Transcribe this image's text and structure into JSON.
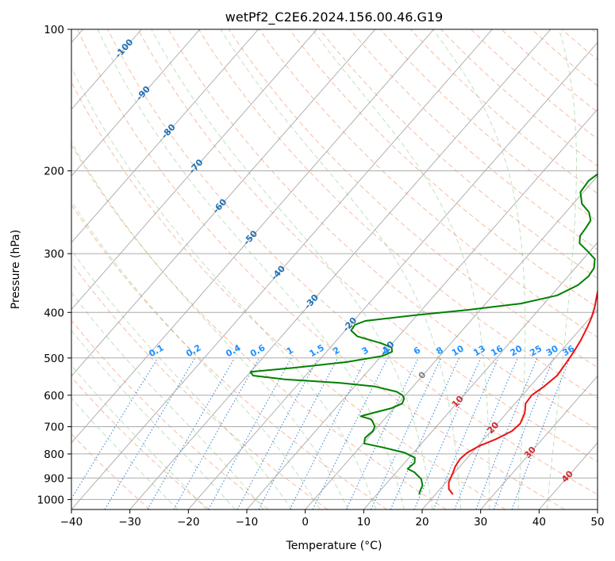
{
  "chart_data": {
    "type": "line",
    "title": "wetPf2_C2E6.2024.156.00.46.G19",
    "xlabel": "Temperature (°C)",
    "ylabel": "Pressure (hPa)",
    "xlim": [
      -40,
      50
    ],
    "ylim": [
      1050,
      100
    ],
    "y_scale": "log",
    "grid": true,
    "x_ticks": [
      -40,
      -30,
      -20,
      -10,
      0,
      10,
      20,
      30,
      40,
      50
    ],
    "y_ticks": [
      100,
      200,
      300,
      400,
      500,
      600,
      700,
      800,
      900,
      1000
    ],
    "isotherm_labels": [
      {
        "value": "-100",
        "temp": -100,
        "p": 110
      },
      {
        "value": "-90",
        "temp": -90,
        "p": 137
      },
      {
        "value": "-80",
        "temp": -80,
        "p": 165
      },
      {
        "value": "-70",
        "temp": -70,
        "p": 196
      },
      {
        "value": "-60",
        "temp": -60,
        "p": 238
      },
      {
        "value": "-50",
        "temp": -50,
        "p": 278
      },
      {
        "value": "-40",
        "temp": -40,
        "p": 330
      },
      {
        "value": "-30",
        "temp": -30,
        "p": 380
      },
      {
        "value": "-20",
        "temp": -20,
        "p": 425
      },
      {
        "value": "-10",
        "temp": -10,
        "p": 478
      },
      {
        "value": "0",
        "temp": 0,
        "p": 545
      },
      {
        "value": "10",
        "temp": 10,
        "p": 620
      },
      {
        "value": "20",
        "temp": 20,
        "p": 705
      },
      {
        "value": "30",
        "temp": 30,
        "p": 795
      },
      {
        "value": "40",
        "temp": 40,
        "p": 895
      }
    ],
    "mixing_ratio_labels": [
      "0.1",
      "0.2",
      "0.4",
      "0.6",
      "1",
      "1.5",
      "2",
      "3",
      "4",
      "6",
      "8",
      "10",
      "13",
      "16",
      "20",
      "25",
      "30",
      "36"
    ],
    "series": [
      {
        "label": "temperature",
        "color": "#ee1111",
        "points": [
          [
            23.0,
            975
          ],
          [
            21.5,
            950
          ],
          [
            20.5,
            920
          ],
          [
            19.8,
            880
          ],
          [
            19.2,
            850
          ],
          [
            18.9,
            820
          ],
          [
            19.2,
            795
          ],
          [
            20.2,
            770
          ],
          [
            22.0,
            745
          ],
          [
            23.6,
            715
          ],
          [
            23.9,
            690
          ],
          [
            23.1,
            655
          ],
          [
            21.8,
            625
          ],
          [
            21.6,
            600
          ],
          [
            22.4,
            575
          ],
          [
            23.0,
            545
          ],
          [
            22.7,
            515
          ],
          [
            22.3,
            485
          ],
          [
            21.8,
            460
          ],
          [
            21.0,
            432
          ],
          [
            20.2,
            410
          ],
          [
            19.2,
            390
          ],
          [
            17.8,
            368
          ],
          [
            16.3,
            345
          ],
          [
            15.0,
            322
          ],
          [
            13.8,
            300
          ],
          [
            12.4,
            282
          ],
          [
            11.0,
            266
          ],
          [
            10.2,
            250
          ],
          [
            10.1,
            235
          ],
          [
            10.4,
            220
          ],
          [
            10.0,
            208
          ],
          [
            8.9,
            195
          ],
          [
            7.6,
            183
          ],
          [
            6.4,
            172
          ],
          [
            5.6,
            160
          ],
          [
            5.1,
            148
          ],
          [
            5.6,
            138
          ],
          [
            6.8,
            128
          ],
          [
            8.6,
            119
          ],
          [
            10.2,
            111
          ],
          [
            11.4,
            104
          ],
          [
            11.8,
            100
          ]
        ]
      },
      {
        "label": "dewpoint",
        "color": "#008000",
        "points": [
          [
            17.2,
            975
          ],
          [
            16.8,
            955
          ],
          [
            16.5,
            935
          ],
          [
            15.3,
            905
          ],
          [
            13.1,
            875
          ],
          [
            11.4,
            860
          ],
          [
            11.7,
            835
          ],
          [
            11.0,
            815
          ],
          [
            8.5,
            795
          ],
          [
            4.0,
            775
          ],
          [
            0.2,
            760
          ],
          [
            -0.5,
            740
          ],
          [
            -0.2,
            715
          ],
          [
            -0.5,
            700
          ],
          [
            -1.5,
            685
          ],
          [
            -2.3,
            675
          ],
          [
            -4.5,
            665
          ],
          [
            -3.0,
            655
          ],
          [
            -0.5,
            640
          ],
          [
            0.7,
            625
          ],
          [
            0.3,
            610
          ],
          [
            -0.5,
            600
          ],
          [
            -2.0,
            590
          ],
          [
            -6.5,
            575
          ],
          [
            -13.0,
            565
          ],
          [
            -23.0,
            555
          ],
          [
            -29.0,
            545
          ],
          [
            -30.0,
            535
          ],
          [
            -23.5,
            525
          ],
          [
            -15.0,
            510
          ],
          [
            -9.8,
            495
          ],
          [
            -8.8,
            485
          ],
          [
            -9.5,
            475
          ],
          [
            -12.0,
            465
          ],
          [
            -17.0,
            450
          ],
          [
            -19.0,
            437
          ],
          [
            -19.2,
            425
          ],
          [
            -18.0,
            417
          ],
          [
            -10.0,
            405
          ],
          [
            -2.0,
            395
          ],
          [
            6.0,
            383
          ],
          [
            11.0,
            368
          ],
          [
            13.0,
            350
          ],
          [
            13.5,
            335
          ],
          [
            13.2,
            322
          ],
          [
            12.0,
            308
          ],
          [
            9.5,
            296
          ],
          [
            7.0,
            285
          ],
          [
            6.0,
            275
          ],
          [
            5.8,
            265
          ],
          [
            5.5,
            255
          ],
          [
            4.0,
            245
          ],
          [
            1.5,
            235
          ],
          [
            -0.5,
            222
          ],
          [
            -0.8,
            210
          ],
          [
            0.0,
            200
          ],
          [
            1.0,
            192
          ],
          [
            1.2,
            182
          ],
          [
            1.0,
            170
          ],
          [
            0.0,
            160
          ],
          [
            -2.5,
            150
          ],
          [
            -7.0,
            142
          ],
          [
            -12.0,
            135
          ],
          [
            -13.2,
            130
          ],
          [
            -12.5,
            125
          ],
          [
            -10.8,
            119
          ],
          [
            -11.5,
            114
          ],
          [
            -13.5,
            109
          ],
          [
            -12.5,
            105
          ],
          [
            -5.0,
            102
          ],
          [
            -0.5,
            100
          ]
        ]
      }
    ]
  }
}
